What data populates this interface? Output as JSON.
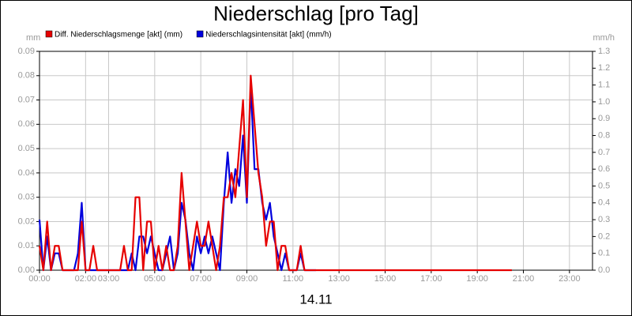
{
  "chart_data": {
    "type": "line",
    "title": "Niederschlag [pro Tag]",
    "x_label": "14.11",
    "y_label": "mm",
    "y2_label": "mm/h",
    "x": [
      0,
      10,
      20,
      30,
      40,
      50,
      60,
      70,
      80,
      90,
      100,
      110,
      120,
      130,
      140,
      150,
      160,
      170,
      180,
      190,
      200,
      210,
      220,
      230,
      240,
      250,
      260,
      270,
      280,
      290,
      300,
      310,
      320,
      330,
      340,
      350,
      360,
      370,
      380,
      390,
      400,
      410,
      420,
      430,
      440,
      450,
      460,
      470,
      480,
      490,
      500,
      510,
      520,
      530,
      540,
      550,
      560,
      570,
      580,
      590,
      600,
      610,
      620,
      630,
      640,
      650,
      660,
      670,
      680,
      690,
      700,
      710,
      720,
      1230
    ],
    "xlim": [
      0,
      1440
    ],
    "xticks": [
      {
        "value": 0,
        "label": "00:00"
      },
      {
        "value": 120,
        "label": "02:00"
      },
      {
        "value": 180,
        "label": "03:00"
      },
      {
        "value": 300,
        "label": "05:00"
      },
      {
        "value": 420,
        "label": "07:00"
      },
      {
        "value": 540,
        "label": "09:00"
      },
      {
        "value": 660,
        "label": "11:00"
      },
      {
        "value": 780,
        "label": "13:00"
      },
      {
        "value": 900,
        "label": "15:00"
      },
      {
        "value": 1020,
        "label": "17:00"
      },
      {
        "value": 1140,
        "label": "19:00"
      },
      {
        "value": 1260,
        "label": "21:00"
      },
      {
        "value": 1380,
        "label": "23:00"
      }
    ],
    "ylim": [
      0,
      0.09
    ],
    "yticks": [
      {
        "value": 0,
        "label": "0.00"
      },
      0.01,
      0.02,
      0.03,
      0.04,
      0.05,
      0.06,
      0.07,
      0.08,
      0.09
    ],
    "y2lim": [
      0,
      1.3
    ],
    "y2ticks": [
      {
        "value": 0,
        "label": "0.0"
      },
      0.1,
      0.2,
      0.3,
      0.4,
      0.5,
      0.6,
      0.7,
      0.8,
      0.9,
      {
        "value": 1,
        "label": "1.0"
      },
      1.1,
      1.2,
      1.3
    ],
    "grid": true,
    "legend": "top-left",
    "series": [
      {
        "name": "Diff. Niederschlagsmenge [akt] (mm)",
        "color": "#e60000",
        "axis": "y",
        "values": [
          0.01,
          0,
          0.02,
          0,
          0.01,
          0.01,
          0,
          0,
          0,
          0,
          0,
          0.02,
          0,
          0,
          0.01,
          0,
          0,
          0,
          0,
          0,
          0,
          0,
          0.01,
          0,
          0,
          0.03,
          0.03,
          0,
          0.02,
          0.02,
          0,
          0.01,
          0,
          0.01,
          0,
          0,
          0.01,
          0.04,
          0.02,
          0,
          0.01,
          0.02,
          0.01,
          0.01,
          0.02,
          0.01,
          0,
          0.01,
          0.03,
          0.03,
          0.04,
          0.03,
          0.05,
          0.07,
          0.03,
          0.08,
          0.06,
          0.04,
          0.03,
          0.01,
          0.02,
          0.02,
          0,
          0.01,
          0.01,
          0,
          0,
          0,
          0.01,
          0,
          0,
          0,
          0,
          0
        ]
      },
      {
        "name": "Niederschlagsintensität [akt] (mm/h)",
        "color": "#0000dd",
        "axis": "y2",
        "values": [
          0.3,
          0,
          0.2,
          0,
          0.1,
          0.1,
          0,
          0,
          0,
          0,
          0.1,
          0.4,
          0,
          0,
          0,
          0,
          0,
          0,
          0,
          0,
          0,
          0,
          0,
          0,
          0.1,
          0,
          0.2,
          0.2,
          0.1,
          0.2,
          0.1,
          0,
          0,
          0.1,
          0.2,
          0,
          0.1,
          0.4,
          0.3,
          0.1,
          0,
          0.2,
          0.1,
          0.2,
          0.1,
          0.2,
          0.1,
          0,
          0.4,
          0.7,
          0.4,
          0.6,
          0.5,
          0.8,
          0.4,
          1.1,
          0.6,
          0.6,
          0.4,
          0.3,
          0.4,
          0.2,
          0.1,
          0,
          0.1,
          0,
          0,
          0,
          0.1,
          0,
          0,
          0,
          0,
          null
        ]
      }
    ]
  }
}
